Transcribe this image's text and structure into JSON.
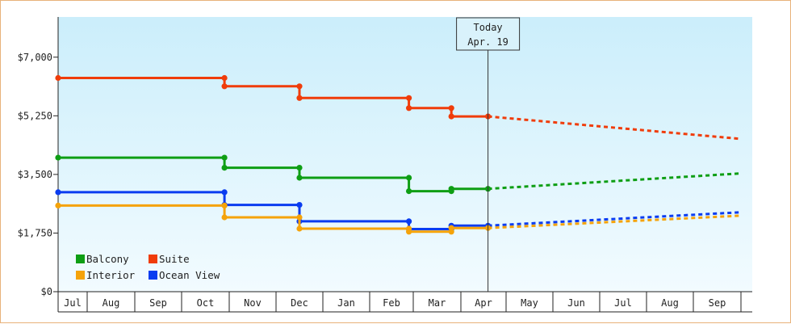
{
  "chart_data": {
    "type": "line",
    "title": "",
    "xlabel": "",
    "ylabel": "",
    "ylim": [
      0,
      8200
    ],
    "y_ticks": [
      {
        "value": 0,
        "label": "$0"
      },
      {
        "value": 1750,
        "label": "$1,750"
      },
      {
        "value": 3500,
        "label": "$3,500"
      },
      {
        "value": 5250,
        "label": "$5,250"
      },
      {
        "value": 7000,
        "label": "$7,000"
      }
    ],
    "months": [
      "Jul",
      "Aug",
      "Sep",
      "Oct",
      "Nov",
      "Dec",
      "Jan",
      "Feb",
      "Mar",
      "Apr",
      "May",
      "Jun",
      "Jul",
      "Aug",
      "Sep"
    ],
    "today": {
      "line1": "Today",
      "line2": "Apr. 19",
      "x": 9.6
    },
    "legend_position": "bottom-left",
    "series": [
      {
        "name": "Suite",
        "color": "#f03c0a",
        "steps": [
          [
            0,
            6380
          ],
          [
            3.9,
            6380
          ],
          [
            3.9,
            6130
          ],
          [
            5.5,
            6130
          ],
          [
            5.5,
            5780
          ],
          [
            7.9,
            5780
          ],
          [
            7.9,
            5480
          ],
          [
            8.8,
            5480
          ],
          [
            8.8,
            5230
          ],
          [
            9.6,
            5230
          ]
        ],
        "projection": [
          [
            9.6,
            5230
          ],
          [
            15.0,
            4560
          ]
        ]
      },
      {
        "name": "Balcony",
        "color": "#0e9e14",
        "steps": [
          [
            0,
            4000
          ],
          [
            3.9,
            4000
          ],
          [
            3.9,
            3700
          ],
          [
            5.5,
            3700
          ],
          [
            5.5,
            3400
          ],
          [
            7.9,
            3400
          ],
          [
            7.9,
            3000
          ],
          [
            8.8,
            3000
          ],
          [
            8.8,
            3070
          ],
          [
            9.6,
            3070
          ]
        ],
        "projection": [
          [
            9.6,
            3070
          ],
          [
            15.0,
            3530
          ]
        ]
      },
      {
        "name": "Ocean View",
        "color": "#0a3cf0",
        "steps": [
          [
            0,
            2970
          ],
          [
            3.9,
            2970
          ],
          [
            3.9,
            2590
          ],
          [
            5.5,
            2590
          ],
          [
            5.5,
            2100
          ],
          [
            7.9,
            2100
          ],
          [
            7.9,
            1870
          ],
          [
            8.8,
            1870
          ],
          [
            8.8,
            1970
          ],
          [
            9.6,
            1970
          ]
        ],
        "projection": [
          [
            9.6,
            1970
          ],
          [
            15.0,
            2370
          ]
        ]
      },
      {
        "name": "Interior",
        "color": "#f5a30a",
        "steps": [
          [
            0,
            2570
          ],
          [
            3.9,
            2570
          ],
          [
            3.9,
            2220
          ],
          [
            5.5,
            2220
          ],
          [
            5.5,
            1880
          ],
          [
            7.9,
            1880
          ],
          [
            7.9,
            1790
          ],
          [
            8.8,
            1790
          ],
          [
            8.8,
            1900
          ],
          [
            9.6,
            1900
          ]
        ],
        "projection": [
          [
            9.6,
            1900
          ],
          [
            15.0,
            2270
          ]
        ]
      }
    ],
    "legend": [
      {
        "name": "Balcony",
        "color": "#0e9e14"
      },
      {
        "name": "Suite",
        "color": "#f03c0a"
      },
      {
        "name": "Interior",
        "color": "#f5a30a"
      },
      {
        "name": "Ocean View",
        "color": "#0a3cf0"
      }
    ]
  }
}
